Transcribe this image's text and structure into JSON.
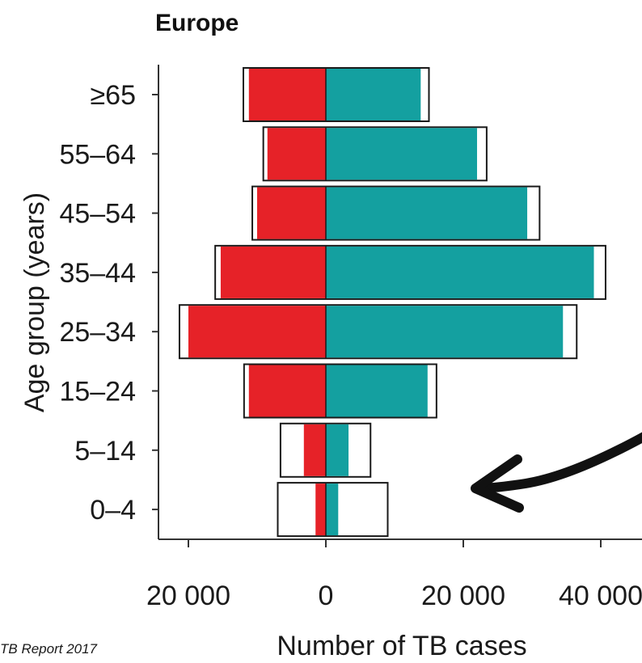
{
  "chart_data": {
    "type": "bar",
    "orientation": "horizontal-diverging",
    "title": "Europe",
    "xlabel": "Number of TB cases",
    "ylabel": "Age group (years)",
    "categories": [
      "≥65",
      "55–64",
      "45–54",
      "35–44",
      "25–34",
      "15–24",
      "5–14",
      "0–4"
    ],
    "xlim": [
      -23000,
      45000
    ],
    "x_ticks": [
      -20000,
      0,
      20000,
      40000
    ],
    "x_tick_labels": [
      "20 000",
      "0",
      "20 000",
      "40 000"
    ],
    "series": [
      {
        "side": "left",
        "color": "#e62228",
        "values": [
          11200,
          8500,
          10000,
          15300,
          20000,
          11200,
          3200,
          1500
        ]
      },
      {
        "side": "left",
        "style": "outline",
        "values": [
          12000,
          9100,
          10700,
          16100,
          21300,
          11900,
          6600,
          7000
        ]
      },
      {
        "side": "right",
        "color": "#14a0a0",
        "values": [
          13800,
          22000,
          29300,
          39000,
          34500,
          14800,
          3300,
          1800
        ]
      },
      {
        "side": "right",
        "style": "outline",
        "values": [
          15000,
          23400,
          31100,
          40700,
          36500,
          16100,
          6500,
          9000
        ]
      }
    ],
    "grid": false
  },
  "annotation": {
    "arrow_icon": "arrow-pointing-left-icon"
  },
  "source": "TB Report 2017",
  "colors": {
    "left": "#e62228",
    "right": "#14a0a0",
    "outline": "#1a1a1a",
    "axis": "#333333"
  }
}
